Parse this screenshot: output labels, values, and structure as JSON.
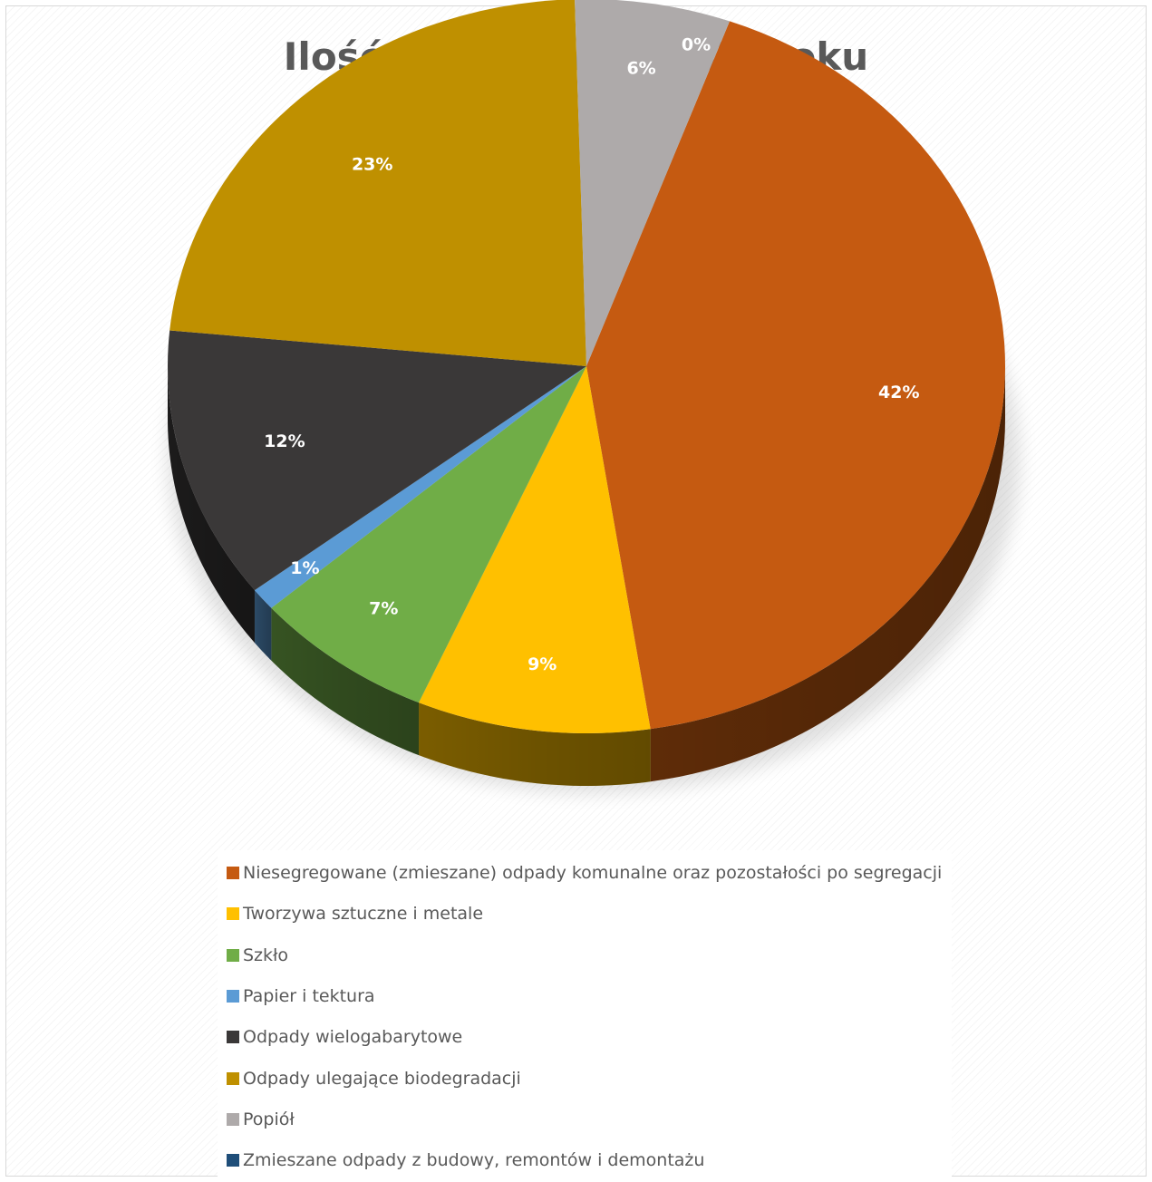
{
  "chart_data": {
    "type": "pie",
    "title": "Ilość odpadów w 2022 roku",
    "three_d": true,
    "legend_position": "bottom",
    "slices": [
      {
        "name": "Niesegregowane (zmieszane) odpady komunalne oraz pozostałości po segregacji",
        "value": 42,
        "label": "42%",
        "color": "#c55a11"
      },
      {
        "name": "Tworzywa sztuczne i metale",
        "value": 9,
        "label": "9%",
        "color": "#ffc000"
      },
      {
        "name": "Szkło",
        "value": 7,
        "label": "7%",
        "color": "#70ad47"
      },
      {
        "name": "Papier i tektura",
        "value": 1,
        "label": "1%",
        "color": "#5b9bd5"
      },
      {
        "name": "Odpady wielogabarytowe",
        "value": 12,
        "label": "12%",
        "color": "#3a3838"
      },
      {
        "name": "Odpady ulegające biodegradacji",
        "value": 23,
        "label": "23%",
        "color": "#bf9000"
      },
      {
        "name": "Popiół",
        "value": 6,
        "label": "6%",
        "color": "#aeaaaa"
      },
      {
        "name": "Zmieszane odpady z budowy, remontów i demontażu",
        "value": 0,
        "label": "0%",
        "color": "#1f4e79"
      }
    ]
  }
}
